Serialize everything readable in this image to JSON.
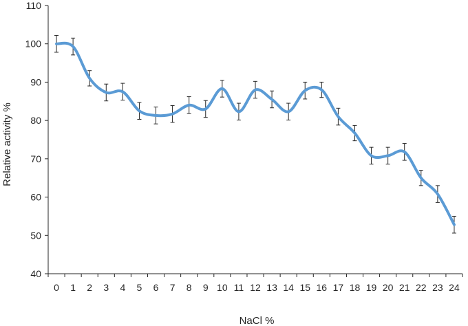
{
  "chart_data": {
    "type": "line",
    "xlabel": "NaCl %",
    "ylabel": "Relative activity %",
    "ylim": [
      40,
      110
    ],
    "yticks": [
      40,
      50,
      60,
      70,
      80,
      90,
      100,
      110
    ],
    "x": [
      0,
      1,
      2,
      3,
      4,
      5,
      6,
      7,
      8,
      9,
      10,
      11,
      12,
      13,
      14,
      15,
      16,
      17,
      18,
      19,
      20,
      21,
      22,
      23,
      24
    ],
    "series": [
      {
        "values": [
          100,
          99.3,
          91,
          87.3,
          87.5,
          82.5,
          81.3,
          81.7,
          84,
          83,
          88.3,
          82.3,
          88,
          85.5,
          82.3,
          87.8,
          88,
          81,
          76.7,
          70.8,
          70.8,
          71.8,
          65,
          60.8,
          52.8
        ],
        "errors": [
          2.2,
          2.2,
          2,
          2.2,
          2.2,
          2.2,
          2.2,
          2.2,
          2.2,
          2.2,
          2.2,
          2.2,
          2.2,
          2.2,
          2.2,
          2.2,
          2,
          2.2,
          2,
          2.2,
          2.2,
          2.2,
          2,
          2.2,
          2.2
        ],
        "color": "#5b9bd5"
      }
    ],
    "axis_color": "#262626",
    "errorbar_color": "#262626"
  }
}
